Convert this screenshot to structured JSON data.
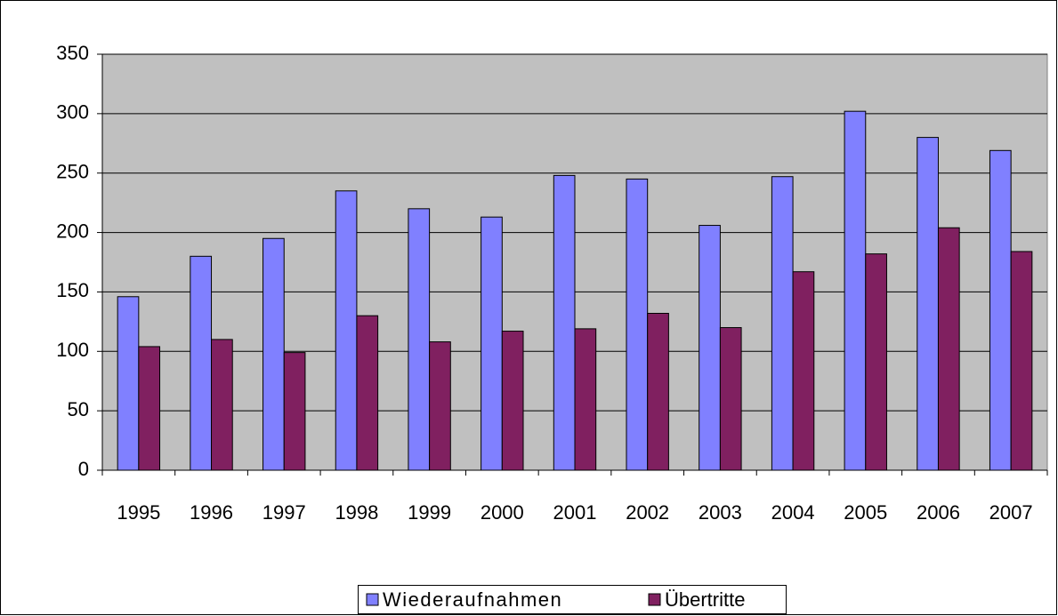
{
  "chart_data": {
    "type": "bar",
    "categories": [
      "1995",
      "1996",
      "1997",
      "1998",
      "1999",
      "2000",
      "2001",
      "2002",
      "2003",
      "2004",
      "2005",
      "2006",
      "2007"
    ],
    "series": [
      {
        "name": "Wiederaufnahmen",
        "color": "#8080ff",
        "values": [
          146,
          180,
          195,
          235,
          220,
          213,
          248,
          245,
          206,
          247,
          302,
          280,
          269
        ]
      },
      {
        "name": "Übertritte",
        "color": "#802060",
        "values": [
          104,
          110,
          99,
          130,
          108,
          117,
          119,
          132,
          120,
          167,
          182,
          204,
          184
        ]
      }
    ],
    "ylim": [
      0,
      350
    ],
    "yticks": [
      0,
      50,
      100,
      150,
      200,
      250,
      300,
      350
    ],
    "grid": true,
    "legend": "bottom"
  }
}
